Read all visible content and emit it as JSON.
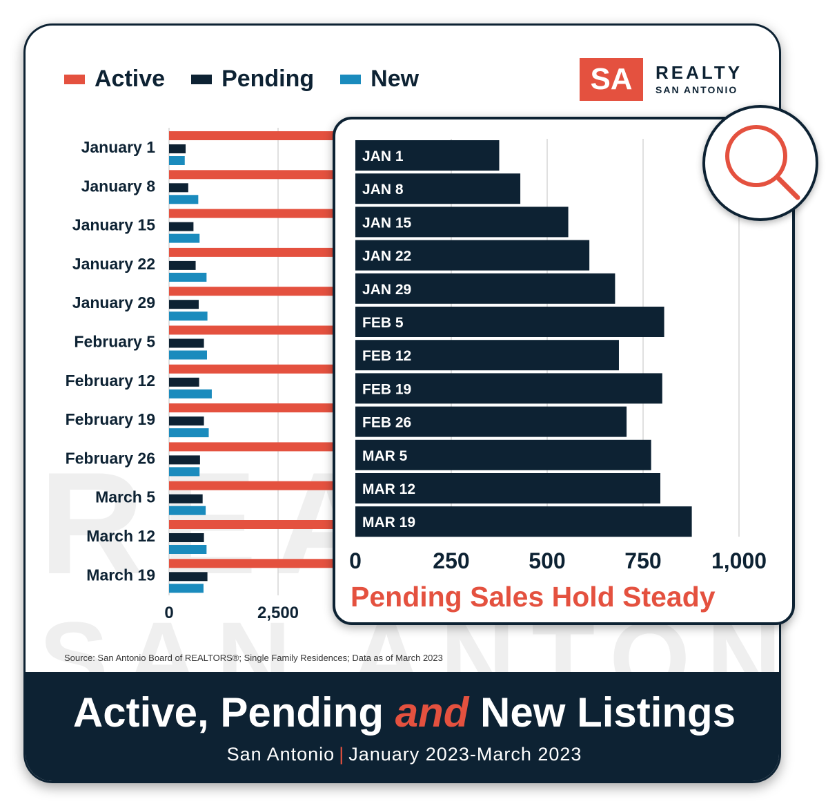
{
  "logo": {
    "mark": "SA",
    "name": "REALTY",
    "sub": "SAN ANTONIO"
  },
  "watermark": {
    "line1": "REALTY",
    "line2": "SAN ANTONIO"
  },
  "legend": [
    {
      "label": "Active",
      "color": "#e4513f"
    },
    {
      "label": "Pending",
      "color": "#0d2233"
    },
    {
      "label": "New",
      "color": "#1a8bbd"
    }
  ],
  "source": "Source: San Antonio Board of REALTORS®; Single Family Residences; Data as of March 2023",
  "footer": {
    "title_part1": "Active, Pending ",
    "title_accent": "and",
    "title_part2": " New Listings",
    "sub_left": "San Antonio",
    "sub_sep": "|",
    "sub_right": "January 2023-March 2023"
  },
  "chart_data": [
    {
      "type": "bar",
      "orientation": "horizontal",
      "categories": [
        "January 1",
        "January 8",
        "January 15",
        "January 22",
        "January 29",
        "February 5",
        "February 12",
        "February 19",
        "February 26",
        "March 5",
        "March 12",
        "March 19"
      ],
      "series": [
        {
          "name": "Active",
          "color": "#e4513f",
          "values": [
            null,
            null,
            null,
            null,
            null,
            null,
            null,
            null,
            null,
            null,
            null,
            null
          ]
        },
        {
          "name": "Pending",
          "color": "#0d2233",
          "values": [
            380,
            440,
            560,
            610,
            680,
            800,
            690,
            800,
            710,
            770,
            800,
            880
          ]
        },
        {
          "name": "New",
          "color": "#1a8bbd",
          "values": [
            360,
            670,
            700,
            860,
            880,
            870,
            980,
            910,
            700,
            840,
            860,
            790
          ]
        }
      ],
      "xticks": [
        "0",
        "2,500"
      ],
      "xlim": [
        0,
        5000
      ],
      "grid": true,
      "legend": "top-left"
    },
    {
      "type": "bar",
      "orientation": "horizontal",
      "title": "Pending Sales Hold Steady",
      "categories": [
        "JAN 1",
        "JAN 8",
        "JAN 15",
        "JAN 22",
        "JAN 29",
        "FEB 5",
        "FEB 12",
        "FEB 19",
        "FEB 26",
        "MAR 5",
        "MAR 12",
        "MAR 19"
      ],
      "values": [
        375,
        430,
        555,
        610,
        677,
        805,
        687,
        800,
        707,
        771,
        795,
        877
      ],
      "xticks": [
        "0",
        "250",
        "500",
        "750",
        "1,000"
      ],
      "xlim": [
        0,
        1000
      ],
      "grid": true
    }
  ]
}
